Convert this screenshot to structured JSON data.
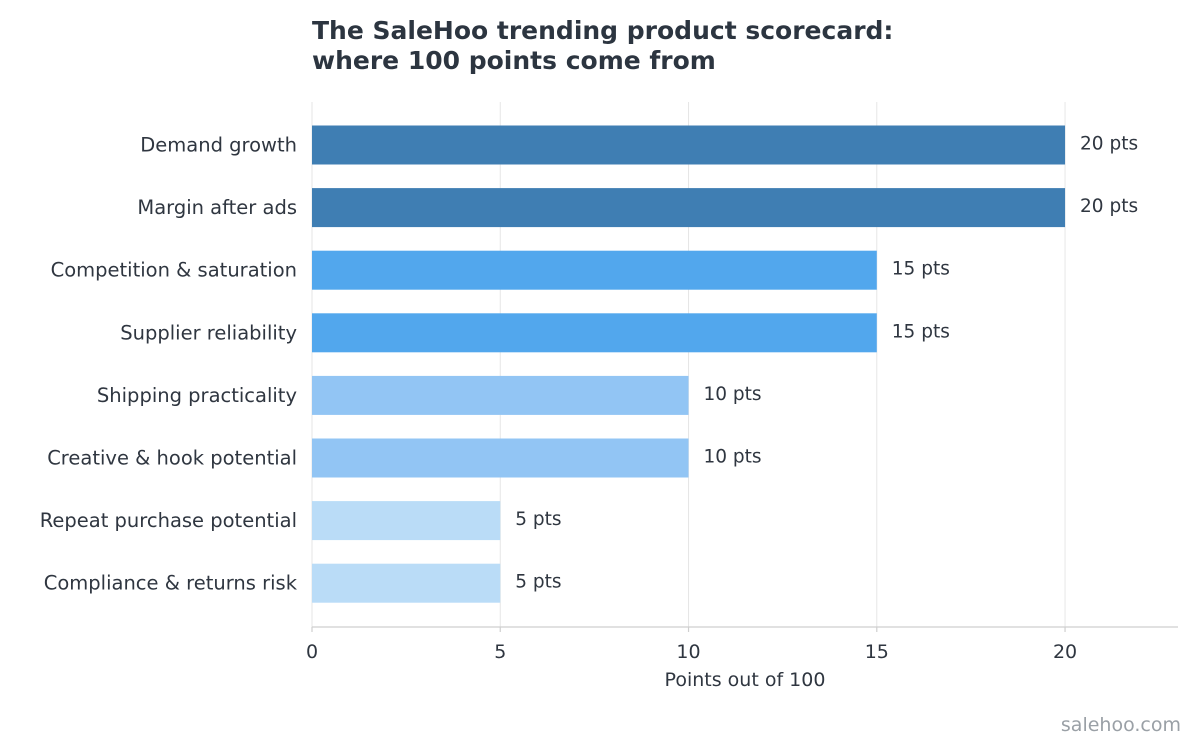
{
  "chart_data": {
    "type": "bar",
    "orientation": "horizontal",
    "title_lines": [
      "The SaleHoo trending product scorecard:",
      "where 100 points come from"
    ],
    "xlabel": "Points out of 100",
    "ylabel": "",
    "xlim": [
      0,
      23
    ],
    "x_ticks": [
      0,
      5,
      10,
      15,
      20
    ],
    "grid": "vertical",
    "categories": [
      "Demand growth",
      "Margin after ads",
      "Competition & saturation",
      "Supplier reliability",
      "Shipping practicality",
      "Creative & hook potential",
      "Repeat purchase potential",
      "Compliance & returns risk"
    ],
    "values": [
      20,
      20,
      15,
      15,
      10,
      10,
      5,
      5
    ],
    "value_labels": [
      "20 pts",
      "20 pts",
      "15 pts",
      "15 pts",
      "10 pts",
      "10 pts",
      "5 pts",
      "5 pts"
    ],
    "colors": {
      "20": "#3f7eb3",
      "15": "#52a7ed",
      "10": "#92c5f4",
      "5": "#badcf7",
      "grid": "#e6e6e6",
      "axis": "#cfcfcf"
    }
  },
  "footer": {
    "source": "salehoo.com"
  }
}
